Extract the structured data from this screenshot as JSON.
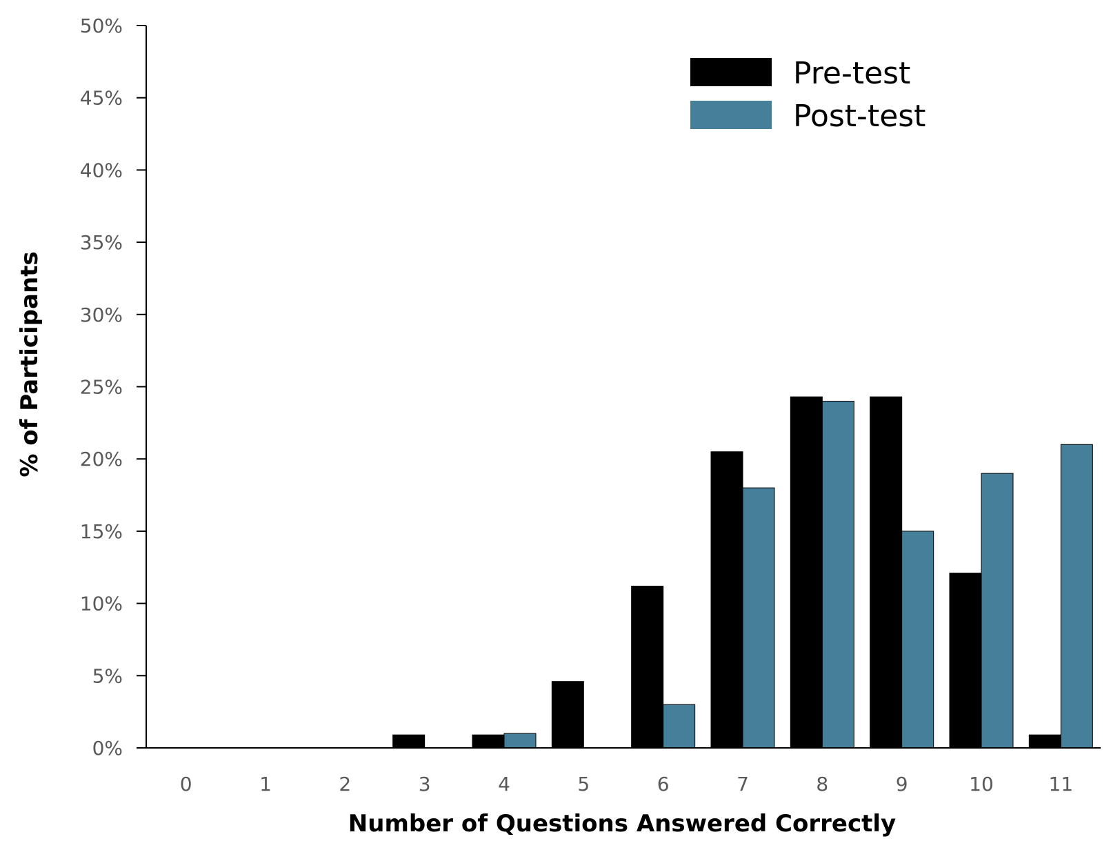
{
  "chart_data": {
    "type": "bar",
    "xlabel": "Number of Questions Answered Correctly",
    "ylabel": "% of Participants",
    "categories": [
      "0",
      "1",
      "2",
      "3",
      "4",
      "5",
      "6",
      "7",
      "8",
      "9",
      "10",
      "11"
    ],
    "y_ticks": [
      "0%",
      "5%",
      "10%",
      "15%",
      "20%",
      "25%",
      "30%",
      "35%",
      "40%",
      "45%",
      "50%"
    ],
    "ylim": [
      0,
      50
    ],
    "grid": false,
    "legend_position": "top-right",
    "series": [
      {
        "name": "Pre-test",
        "color": "#000000",
        "values": [
          0,
          0,
          0,
          0.9,
          0.9,
          4.6,
          11.2,
          20.5,
          24.3,
          24.3,
          12.1,
          0.9
        ]
      },
      {
        "name": "Post-test",
        "color": "#467f99",
        "values": [
          0,
          0,
          0,
          0,
          1.0,
          0,
          3.0,
          18.0,
          24.0,
          15.0,
          19.0,
          21.0
        ]
      }
    ]
  }
}
